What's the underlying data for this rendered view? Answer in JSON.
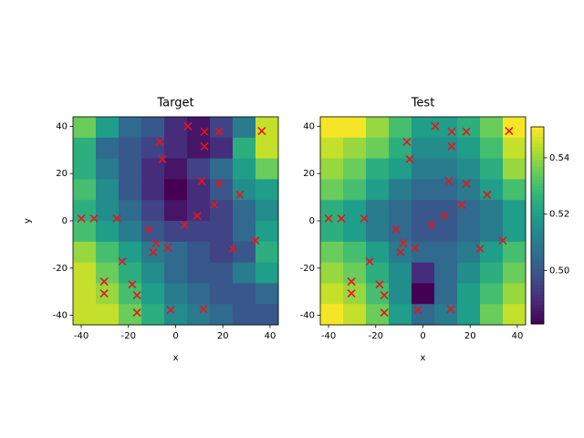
{
  "chart_data": [
    {
      "type": "heatmap",
      "title": "Target",
      "xlabel": "x",
      "ylabel": "y",
      "colormap": "viridis",
      "clim": [
        0.481,
        0.551
      ],
      "xlim": [
        -43.5,
        43.5
      ],
      "ylim": [
        -44,
        44
      ],
      "xticks": [
        -40,
        -20,
        0,
        20,
        40
      ],
      "yticks": [
        -40,
        -20,
        0,
        20,
        40
      ],
      "z": [
        [
          0.535,
          0.52,
          0.505,
          0.5,
          0.49,
          0.485,
          0.495,
          0.51,
          0.545
        ],
        [
          0.525,
          0.505,
          0.5,
          0.495,
          0.49,
          0.485,
          0.49,
          0.525,
          0.545
        ],
        [
          0.525,
          0.51,
          0.5,
          0.49,
          0.485,
          0.495,
          0.505,
          0.52,
          0.535
        ],
        [
          0.53,
          0.515,
          0.5,
          0.49,
          0.48,
          0.49,
          0.5,
          0.515,
          0.52
        ],
        [
          0.525,
          0.515,
          0.505,
          0.495,
          0.485,
          0.49,
          0.495,
          0.505,
          0.515
        ],
        [
          0.53,
          0.52,
          0.51,
          0.5,
          0.495,
          0.495,
          0.495,
          0.505,
          0.52
        ],
        [
          0.54,
          0.53,
          0.52,
          0.51,
          0.505,
          0.5,
          0.495,
          0.5,
          0.525
        ],
        [
          0.545,
          0.535,
          0.525,
          0.515,
          0.505,
          0.5,
          0.5,
          0.51,
          0.52
        ],
        [
          0.545,
          0.54,
          0.53,
          0.52,
          0.51,
          0.505,
          0.5,
          0.5,
          0.505
        ],
        [
          0.545,
          0.545,
          0.535,
          0.525,
          0.515,
          0.51,
          0.505,
          0.5,
          0.5
        ]
      ],
      "points": {
        "color": "#e8141c",
        "x": [
          -40,
          -34.6,
          -24.9,
          -22.6,
          -30.3,
          -30.3,
          -18.4,
          -16.4,
          -16.4,
          -11.4,
          -9.5,
          -8.3,
          -3.3,
          -6.8,
          -5.6,
          5.2,
          12.2,
          18.4,
          12.2,
          11,
          18.4,
          16.4,
          9.1,
          3.7,
          27.2,
          24.2,
          33.8,
          36.5,
          -2.1,
          11.8
        ],
        "y": [
          1,
          1,
          1,
          -17.2,
          -25.7,
          -30.7,
          -26.9,
          -31.5,
          -38.8,
          -3.7,
          -13.3,
          -9.5,
          -11.4,
          33.4,
          26.1,
          40,
          37.7,
          37.7,
          31.5,
          16.8,
          15.7,
          6.8,
          2.1,
          -1.7,
          11,
          -11.8,
          -8.3,
          38,
          -37.7,
          -37.3
        ]
      }
    },
    {
      "type": "heatmap",
      "title": "Test",
      "xlabel": "x",
      "colormap": "viridis",
      "clim": [
        0.481,
        0.551
      ],
      "xlim": [
        -43.5,
        43.5
      ],
      "ylim": [
        -44,
        44
      ],
      "xticks": [
        -40,
        -20,
        0,
        20,
        40
      ],
      "yticks": [
        -40,
        -20,
        0,
        20,
        40
      ],
      "colorbar_ticks": [
        {
          "value": 0.5,
          "label": "0.50"
        },
        {
          "value": 0.52,
          "label": "0.52"
        },
        {
          "value": 0.54,
          "label": "0.54"
        }
      ],
      "z": [
        [
          0.55,
          0.55,
          0.54,
          0.53,
          0.52,
          0.52,
          0.525,
          0.535,
          0.55
        ],
        [
          0.545,
          0.54,
          0.535,
          0.525,
          0.515,
          0.515,
          0.52,
          0.53,
          0.545
        ],
        [
          0.54,
          0.535,
          0.525,
          0.52,
          0.51,
          0.51,
          0.515,
          0.525,
          0.54
        ],
        [
          0.535,
          0.53,
          0.52,
          0.51,
          0.505,
          0.505,
          0.51,
          0.52,
          0.53
        ],
        [
          0.525,
          0.52,
          0.51,
          0.505,
          0.5,
          0.5,
          0.505,
          0.51,
          0.52
        ],
        [
          0.525,
          0.52,
          0.51,
          0.505,
          0.5,
          0.5,
          0.505,
          0.51,
          0.52
        ],
        [
          0.535,
          0.53,
          0.52,
          0.51,
          0.505,
          0.505,
          0.51,
          0.52,
          0.53
        ],
        [
          0.54,
          0.535,
          0.525,
          0.515,
          0.49,
          0.505,
          0.515,
          0.525,
          0.535
        ],
        [
          0.545,
          0.54,
          0.53,
          0.515,
          0.48,
          0.505,
          0.52,
          0.53,
          0.54
        ],
        [
          0.55,
          0.545,
          0.535,
          0.52,
          0.505,
          0.51,
          0.52,
          0.535,
          0.545
        ]
      ],
      "points": {
        "color": "#e8141c",
        "x": [
          -40,
          -34.6,
          -24.9,
          -22.6,
          -30.3,
          -30.3,
          -18.4,
          -16.4,
          -16.4,
          -11.4,
          -9.5,
          -8.3,
          -3.3,
          -6.8,
          -5.6,
          5.2,
          12.2,
          18.4,
          12.2,
          11,
          18.4,
          16.4,
          9.1,
          3.7,
          27.2,
          24.2,
          33.8,
          36.5,
          -2.1,
          11.8
        ],
        "y": [
          1,
          1,
          1,
          -17.2,
          -25.7,
          -30.7,
          -26.9,
          -31.5,
          -38.8,
          -3.7,
          -13.3,
          -9.5,
          -11.4,
          33.4,
          26.1,
          40,
          37.7,
          37.7,
          31.5,
          16.8,
          15.7,
          6.8,
          2.1,
          -1.7,
          11,
          -11.8,
          -8.3,
          38,
          -37.7,
          -37.3
        ]
      }
    }
  ]
}
